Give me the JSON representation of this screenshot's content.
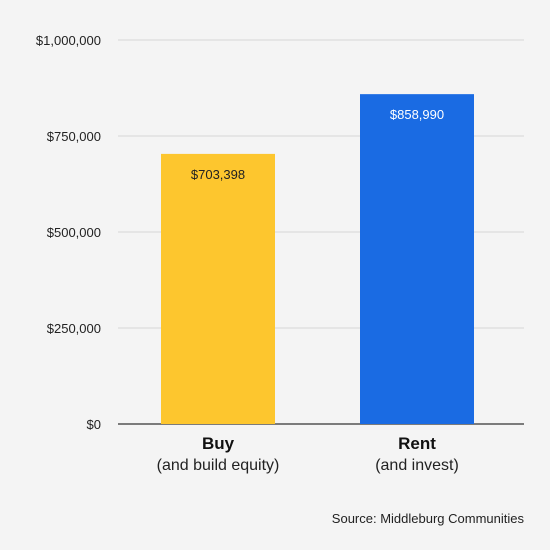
{
  "chart_data": {
    "type": "bar",
    "categories": [
      "Buy",
      "Rent"
    ],
    "category_sublabels": [
      "(and build equity)",
      "(and invest)"
    ],
    "values": [
      703398,
      858990
    ],
    "value_labels": [
      "$703,398",
      "$858,990"
    ],
    "colors": [
      "#fdc62e",
      "#1a6be3"
    ],
    "value_label_colors": [
      "#222222",
      "#ffffff"
    ],
    "ylim": [
      0,
      1000000
    ],
    "yticks": [
      0,
      250000,
      500000,
      750000,
      1000000
    ],
    "ytick_labels": [
      "$0",
      "$250,000",
      "$500,000",
      "$750,000",
      "$1,000,000"
    ],
    "grid": true,
    "legend": "none"
  },
  "source": "Source: Middleburg Communities"
}
